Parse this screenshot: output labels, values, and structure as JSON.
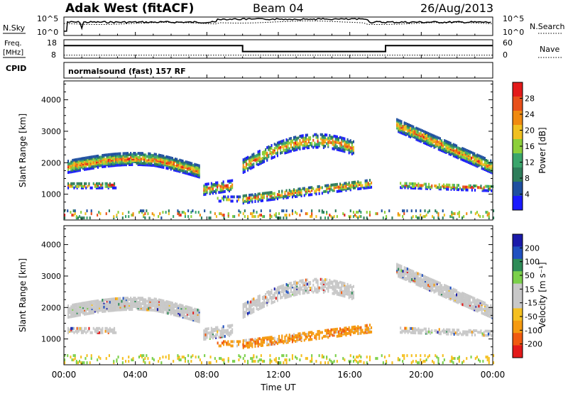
{
  "header": {
    "station": "Adak West (fitACF)",
    "beam": "Beam 04",
    "date": "26/Aug/2013"
  },
  "cpid_program": "normalsound (fast) 157 RF",
  "left_labels": {
    "nsky": "N.Sky",
    "freq_line1": "Freq.",
    "freq_line2": "[MHz]",
    "cpid": "CPID"
  },
  "right_labels": {
    "nsearch": "N.Search",
    "nave": "Nave"
  },
  "colors": {
    "power_scale": [
      "#1a1aff",
      "#1f4fa0",
      "#2e7d5a",
      "#3aa56b",
      "#8ccf3a",
      "#f0c020",
      "#f08a10",
      "#e8501a",
      "#e31a1a"
    ],
    "velocity_scale": [
      "#e31a1a",
      "#f05a10",
      "#f59a10",
      "#f5c020",
      "#c8c8c8",
      "#c8c8c8",
      "#7bd04a",
      "#2e8b57",
      "#2050c0",
      "#1a1aaa"
    ]
  },
  "chart_data": [
    {
      "type": "line",
      "name": "noise",
      "ylabel": "N.Sky",
      "ylabel_right": "N.Search",
      "y_ticks_left": [
        "10^5",
        "10^0"
      ],
      "y_ticks_right": [
        "10^5",
        "10^0"
      ],
      "xlim": [
        "00:00",
        "24:00"
      ]
    },
    {
      "type": "line",
      "name": "frequency",
      "ylabel": "Freq. [MHz]",
      "ylabel_right": "Nave",
      "y_ticks_left": [
        18,
        8
      ],
      "y_ticks_right": [
        60,
        0
      ],
      "freq_segments": [
        {
          "x0": 0,
          "x1": 10.0,
          "y": 15.6
        },
        {
          "x0": 10.0,
          "x1": 18.0,
          "y": 12.4
        },
        {
          "x0": 18.0,
          "x1": 24.0,
          "y": 15.6
        }
      ],
      "nave_level": 9.8
    },
    {
      "type": "heatmap",
      "name": "power",
      "ylabel": "Slant Range [km]",
      "ylim": [
        180,
        4600
      ],
      "y_ticks": [
        1000,
        2000,
        3000,
        4000
      ],
      "colorbar_label": "Power [dB]",
      "colorbar_ticks": [
        4,
        8,
        12,
        16,
        20,
        24,
        28
      ],
      "colorbar_range": [
        0,
        32
      ]
    },
    {
      "type": "heatmap",
      "name": "velocity",
      "ylabel": "Slant Range [km]",
      "ylim": [
        180,
        4600
      ],
      "y_ticks": [
        1000,
        2000,
        3000,
        4000
      ],
      "colorbar_label": "Velocity [m s⁻¹]",
      "colorbar_ticks": [
        "200",
        "100",
        "50",
        "15",
        "-15",
        "-50",
        "-100",
        "-200"
      ],
      "x_ticks": [
        "00:00",
        "04:00",
        "08:00",
        "12:00",
        "16:00",
        "20:00",
        "00:00"
      ],
      "xlabel": "Time UT"
    }
  ]
}
